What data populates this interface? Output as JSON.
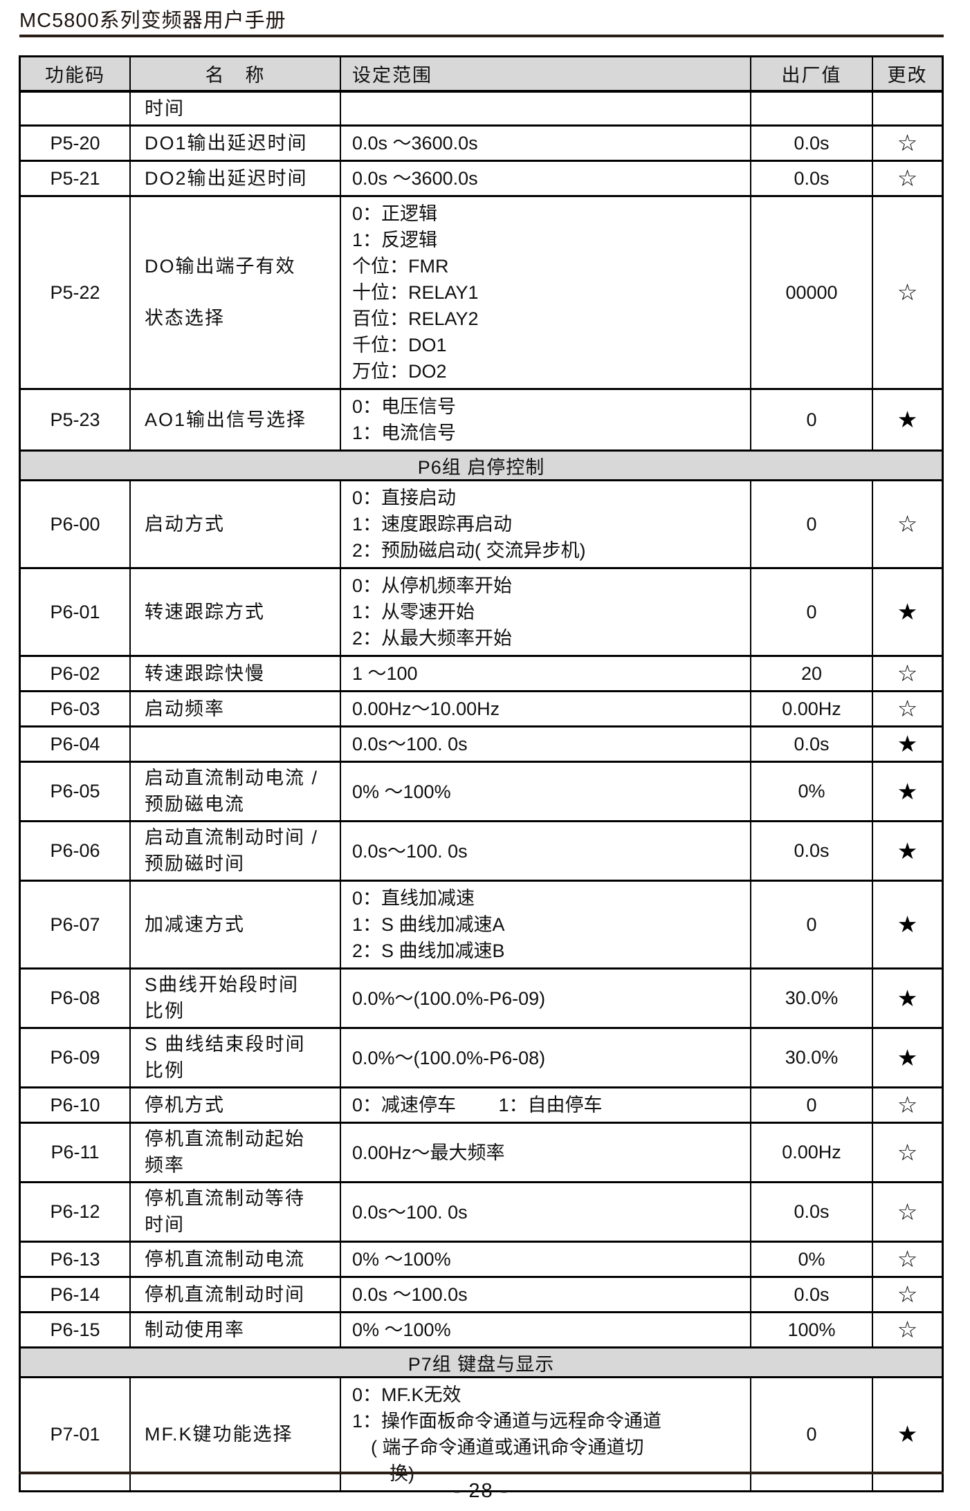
{
  "document": {
    "title": "MC5800系列变频器用户手册",
    "page_number": "- 28 -"
  },
  "table": {
    "columns": [
      "功能码",
      "名　称",
      "设定范围",
      "出厂值",
      "更改"
    ],
    "change_symbols": {
      "modifiable_running": "☆",
      "modifiable_stopped_only": "★"
    },
    "rows": [
      {
        "type": "param",
        "code": "",
        "name": [
          "时间"
        ],
        "range_lines": [
          ""
        ],
        "default": "",
        "change": ""
      },
      {
        "type": "param",
        "code": "P5-20",
        "name": [
          "DO1输出延迟时间"
        ],
        "range_lines": [
          "0.0s ～3600.0s"
        ],
        "default": "0.0s",
        "change": "☆"
      },
      {
        "type": "param",
        "code": "P5-21",
        "name": [
          "DO2输出延迟时间"
        ],
        "range_lines": [
          "0.0s ～3600.0s"
        ],
        "default": "0.0s",
        "change": "☆"
      },
      {
        "type": "param",
        "code": "P5-22",
        "name": [
          "DO输出端子有效",
          "状态选择"
        ],
        "range_lines": [
          "0：正逻辑",
          "1：反逻辑",
          "个位：FMR",
          "十位：RELAY1",
          "百位：RELAY2",
          "千位：DO1",
          "万位：DO2"
        ],
        "default": "00000",
        "change": "☆"
      },
      {
        "type": "param",
        "code": "P5-23",
        "name": [
          "AO1输出信号选择"
        ],
        "range_lines": [
          "0：电压信号",
          "1：电流信号"
        ],
        "default": "0",
        "change": "★"
      },
      {
        "type": "group",
        "label": "P6组 启停控制"
      },
      {
        "type": "param",
        "code": "P6-00",
        "name": [
          "启动方式"
        ],
        "range_lines": [
          "0：直接启动",
          "1：速度跟踪再启动",
          "2：预励磁启动( 交流异步机)"
        ],
        "default": "0",
        "change": "☆"
      },
      {
        "type": "param",
        "code": "P6-01",
        "name": [
          "转速跟踪方式"
        ],
        "range_lines": [
          "0：从停机频率开始",
          "1：从零速开始",
          "2：从最大频率开始"
        ],
        "default": "0",
        "change": "★"
      },
      {
        "type": "param",
        "code": "P6-02",
        "name": [
          "转速跟踪快慢"
        ],
        "range_lines": [
          "1 ～100"
        ],
        "default": "20",
        "change": "☆"
      },
      {
        "type": "param",
        "code": "P6-03",
        "name": [
          "启动频率"
        ],
        "range_lines": [
          "0.00Hz～10.00Hz"
        ],
        "default": "0.00Hz",
        "change": "☆"
      },
      {
        "type": "param",
        "code": "P6-04",
        "name": [
          ""
        ],
        "range_lines": [
          "0.0s～100. 0s"
        ],
        "default": "0.0s",
        "change": "★"
      },
      {
        "type": "param",
        "code": "P6-05",
        "name": [
          "启动直流制动电流 /",
          "预励磁电流"
        ],
        "range_lines": [
          "0% ～100%"
        ],
        "default": "0%",
        "change": "★"
      },
      {
        "type": "param",
        "code": "P6-06",
        "name": [
          "启动直流制动时间 /",
          "预励磁时间"
        ],
        "range_lines": [
          "0.0s～100. 0s"
        ],
        "default": "0.0s",
        "change": "★"
      },
      {
        "type": "param",
        "code": "P6-07",
        "name": [
          "加减速方式"
        ],
        "range_lines": [
          "0：直线加减速",
          "1：S 曲线加减速A",
          "2：S 曲线加减速B"
        ],
        "default": "0",
        "change": "★"
      },
      {
        "type": "param",
        "code": "P6-08",
        "name": [
          "S曲线开始段时间",
          "比例"
        ],
        "range_lines": [
          "0.0%～(100.0%-P6-09)"
        ],
        "default": "30.0%",
        "change": "★"
      },
      {
        "type": "param",
        "code": "P6-09",
        "name": [
          "S 曲线结束段时间",
          "比例"
        ],
        "range_lines": [
          "0.0%～(100.0%-P6-08)"
        ],
        "default": "30.0%",
        "change": "★"
      },
      {
        "type": "param",
        "code": "P6-10",
        "name": [
          "停机方式"
        ],
        "range_lines": [
          "0：减速停车　　 1：自由停车"
        ],
        "default": "0",
        "change": "☆"
      },
      {
        "type": "param",
        "code": "P6-11",
        "name": [
          "停机直流制动起始",
          "频率"
        ],
        "range_lines": [
          "0.00Hz～最大频率"
        ],
        "default": "0.00Hz",
        "change": "☆"
      },
      {
        "type": "param",
        "code": "P6-12",
        "name": [
          "停机直流制动等待",
          "时间"
        ],
        "range_lines": [
          "0.0s～100. 0s"
        ],
        "default": "0.0s",
        "change": "☆"
      },
      {
        "type": "param",
        "code": "P6-13",
        "name": [
          "停机直流制动电流"
        ],
        "range_lines": [
          "0% ～100%"
        ],
        "default": "0%",
        "change": "☆"
      },
      {
        "type": "param",
        "code": "P6-14",
        "name": [
          "停机直流制动时间"
        ],
        "range_lines": [
          "0.0s ～100.0s"
        ],
        "default": "0.0s",
        "change": "☆"
      },
      {
        "type": "param",
        "code": "P6-15",
        "name": [
          "制动使用率"
        ],
        "range_lines": [
          "0% ～100%"
        ],
        "default": "100%",
        "change": "☆"
      },
      {
        "type": "group",
        "label": "P7组 键盘与显示"
      },
      {
        "type": "param",
        "code": "P7-01",
        "name": [
          "MF.K键功能选择"
        ],
        "range_lines": [
          "0：MF.K无效",
          "1：操作面板命令通道与远程命令通道",
          "　( 端子命令通道或通讯命令通道切",
          "　　换)"
        ],
        "default": "0",
        "change": "★"
      }
    ]
  }
}
